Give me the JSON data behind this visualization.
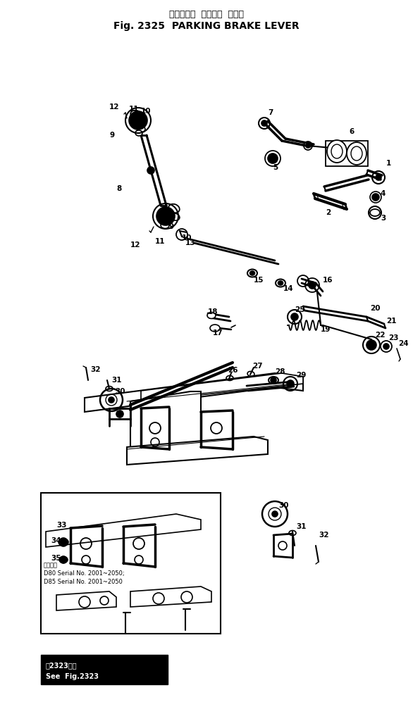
{
  "title_japanese": "パーキング  ブレーキ  レバー",
  "title_english": "Fig. 2325  PARKING BRAKE LEVER",
  "bg_color": "#ffffff",
  "text_color": "#000000",
  "note_japanese": "適用車種",
  "note_line1": "D80 Serial No. 2001~2050;",
  "note_line2": "D85 Serial No. 2001~2050",
  "see_ref_japanese": "図2323参照",
  "see_ref_english": "See  Fig.2323",
  "figsize": [
    5.86,
    10.07
  ],
  "dpi": 100
}
